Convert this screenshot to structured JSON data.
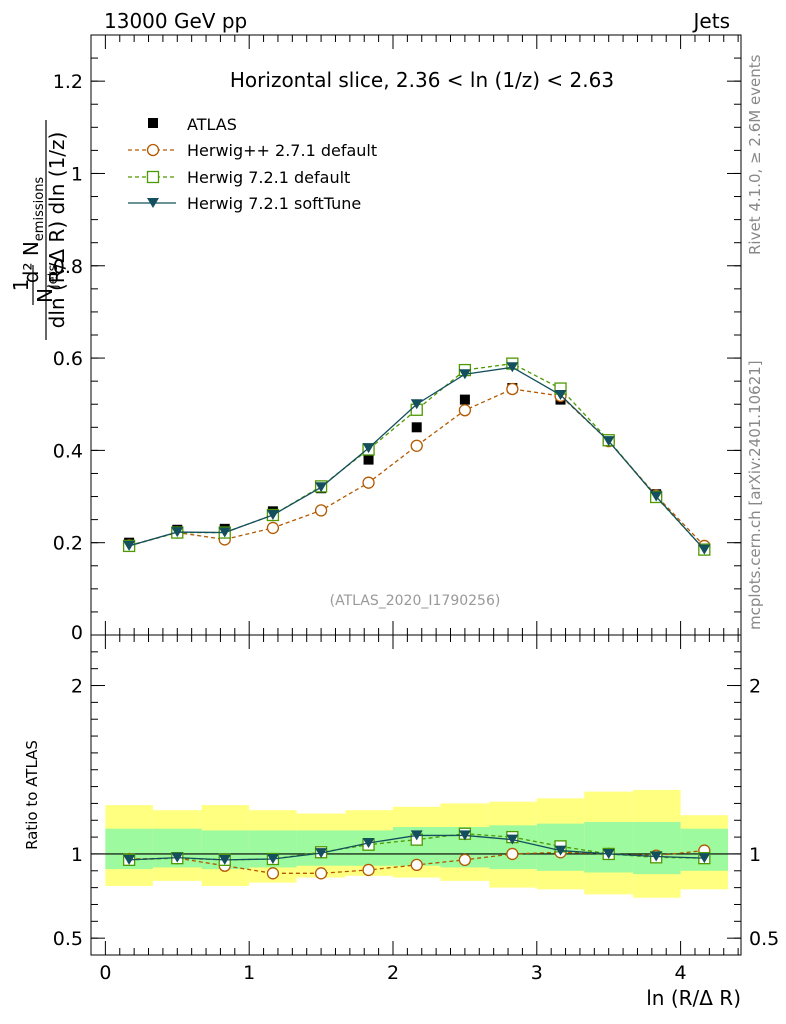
{
  "header": {
    "left": "13000 GeV pp",
    "right": "Jets"
  },
  "side_labels": {
    "top": "Rivet 4.1.0, ≥ 2.6M events",
    "bottom": "mcplots.cern.ch [arXiv:2401.10621]"
  },
  "chart_data": [
    {
      "type": "line",
      "title": "Horizontal slice, 2.36 < ln (1/z) < 2.63",
      "ylabel_lines": [
        "d² N",
        "emissions",
        "dln (R/Δ R) dln (1/z)",
        "1",
        "N",
        "jets"
      ],
      "xlabel": "ln (R/Δ R)",
      "watermark": "(ATLAS_2020_I1790256)",
      "xlim": [
        -0.1,
        4.42
      ],
      "ylim": [
        0,
        1.3
      ],
      "x_ticks": [
        0,
        1,
        2,
        3,
        4
      ],
      "y_ticks": [
        0.2,
        0.4,
        0.6,
        0.8,
        1,
        1.2
      ],
      "y_tick_labels": [
        "0.2",
        "0.4",
        "0.6",
        "0.8",
        "1",
        "1.2"
      ],
      "x": [
        0.165,
        0.5,
        0.83,
        1.165,
        1.5,
        1.83,
        2.165,
        2.5,
        2.83,
        3.165,
        3.5,
        3.83,
        4.165
      ],
      "series": [
        {
          "name": "ATLAS",
          "marker": "filled-square",
          "color": "#000000",
          "values": [
            0.2,
            0.228,
            0.23,
            0.268,
            0.318,
            0.38,
            0.45,
            0.51,
            0.535,
            0.51,
            0.42,
            0.305,
            0.19
          ]
        },
        {
          "name": "Herwig++ 2.7.1 default",
          "marker": "open-circle",
          "color": "#b35900",
          "dash": true,
          "values": [
            0.194,
            0.222,
            0.207,
            0.232,
            0.27,
            0.33,
            0.41,
            0.487,
            0.533,
            0.518,
            0.42,
            0.302,
            0.193
          ]
        },
        {
          "name": "Herwig 7.2.1 default",
          "marker": "open-square",
          "color": "#4d9900",
          "dash": true,
          "values": [
            0.193,
            0.222,
            0.222,
            0.26,
            0.322,
            0.402,
            0.488,
            0.574,
            0.588,
            0.534,
            0.422,
            0.299,
            0.185
          ]
        },
        {
          "name": "Herwig 7.2.1 softTune",
          "marker": "filled-triangle-down",
          "color": "#134f5c",
          "dash": false,
          "values": [
            0.193,
            0.223,
            0.222,
            0.26,
            0.32,
            0.405,
            0.5,
            0.565,
            0.58,
            0.52,
            0.42,
            0.3,
            0.185
          ]
        }
      ]
    },
    {
      "type": "line",
      "ylabel": "Ratio to ATLAS",
      "xlabel": "ln (R/Δ R)",
      "xlim": [
        -0.1,
        4.42
      ],
      "ylim": [
        0.4,
        2.3
      ],
      "y_ticks": [
        0.5,
        1,
        2
      ],
      "y_tick_labels": [
        "0.5",
        "1",
        "2"
      ],
      "x_ticks": [
        0,
        1,
        2,
        3,
        4
      ],
      "x_tick_labels": [
        "0",
        "1",
        "2",
        "3",
        "4"
      ],
      "bin_edges": [
        0,
        0.33,
        0.67,
        1.0,
        1.33,
        1.67,
        2.0,
        2.33,
        2.67,
        3.0,
        3.33,
        3.67,
        4.0,
        4.33
      ],
      "band_outer": {
        "color": "#ffff80",
        "low": [
          0.81,
          0.84,
          0.81,
          0.83,
          0.86,
          0.87,
          0.86,
          0.84,
          0.8,
          0.79,
          0.76,
          0.74,
          0.79
        ],
        "high": [
          1.29,
          1.26,
          1.29,
          1.26,
          1.24,
          1.26,
          1.28,
          1.3,
          1.31,
          1.33,
          1.37,
          1.38,
          1.23
        ]
      },
      "band_inner": {
        "color": "#9efa9e",
        "low": [
          0.91,
          0.92,
          0.91,
          0.92,
          0.93,
          0.93,
          0.93,
          0.92,
          0.91,
          0.9,
          0.89,
          0.88,
          0.9
        ],
        "high": [
          1.15,
          1.15,
          1.14,
          1.14,
          1.14,
          1.14,
          1.16,
          1.16,
          1.17,
          1.18,
          1.19,
          1.19,
          1.15
        ]
      },
      "series": [
        {
          "name": "Herwig++ 2.7.1 default",
          "marker": "open-circle",
          "color": "#b35900",
          "dash": true,
          "values": [
            0.97,
            0.975,
            0.93,
            0.885,
            0.885,
            0.905,
            0.935,
            0.965,
            1.0,
            1.01,
            1.0,
            0.99,
            1.02
          ]
        },
        {
          "name": "Herwig 7.2.1 default",
          "marker": "open-square",
          "color": "#4d9900",
          "dash": true,
          "values": [
            0.965,
            0.975,
            0.965,
            0.97,
            1.01,
            1.055,
            1.085,
            1.12,
            1.1,
            1.045,
            1.0,
            0.98,
            0.975
          ]
        },
        {
          "name": "Herwig 7.2.1 softTune",
          "marker": "filled-triangle-down",
          "color": "#134f5c",
          "dash": false,
          "values": [
            0.965,
            0.978,
            0.965,
            0.97,
            1.005,
            1.065,
            1.11,
            1.11,
            1.085,
            1.02,
            1.0,
            0.985,
            0.975
          ]
        }
      ]
    }
  ]
}
